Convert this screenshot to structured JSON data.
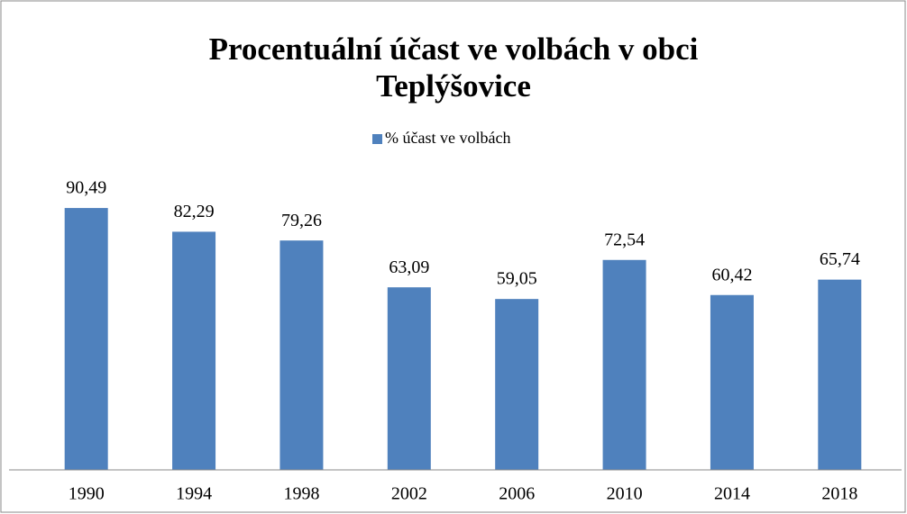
{
  "chart_data": {
    "type": "bar",
    "title": "Procentuální účast ve volbách v obci Teplýšovice",
    "categories": [
      "1990",
      "1994",
      "1998",
      "2002",
      "2006",
      "2010",
      "2014",
      "2018"
    ],
    "series": [
      {
        "name": "% účast ve volbách",
        "color": "#4f81bd",
        "values": [
          90.49,
          82.29,
          79.26,
          63.09,
          59.05,
          72.54,
          60.42,
          65.74
        ],
        "value_labels": [
          "90,49",
          "82,29",
          "79,26",
          "63,09",
          "59,05",
          "72,54",
          "60,42",
          "65,74"
        ]
      }
    ],
    "ylim": [
      0,
      100
    ],
    "legend": "top"
  }
}
